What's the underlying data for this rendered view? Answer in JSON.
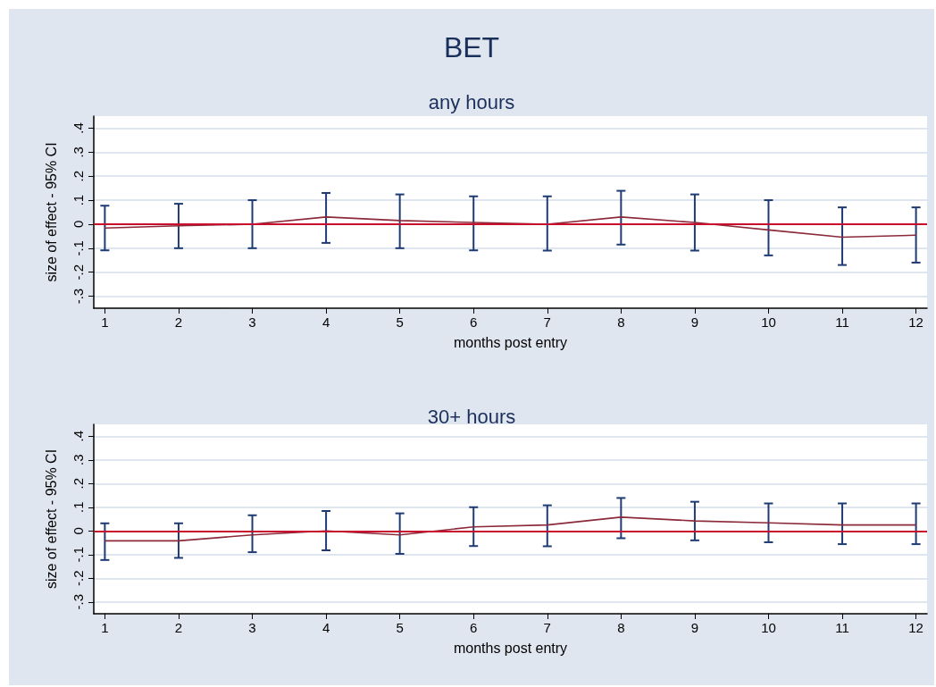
{
  "chart_data": [
    {
      "type": "line",
      "title": "BET",
      "subtitle": "any hours",
      "xlabel": "months post entry",
      "ylabel": "size of effect - 95% CI",
      "x": [
        1,
        2,
        3,
        4,
        5,
        6,
        7,
        8,
        9,
        10,
        11,
        12
      ],
      "series": [
        {
          "color": "#8c2a3a",
          "values": [
            -0.016,
            -0.007,
            0,
            0.03,
            0.015,
            0.007,
            0,
            0.03,
            0.007,
            -0.024,
            -0.054,
            -0.046
          ],
          "errors": [
            [
              -0.109,
              0.077
            ],
            [
              -0.1,
              0.085
            ],
            [
              -0.1,
              0.1
            ],
            [
              -0.078,
              0.13
            ],
            [
              -0.1,
              0.124
            ],
            [
              -0.109,
              0.116
            ],
            [
              -0.11,
              0.116
            ],
            [
              -0.085,
              0.139
            ],
            [
              -0.11,
              0.124
            ],
            [
              -0.13,
              0.1
            ],
            [
              -0.17,
              0.07
            ],
            [
              -0.16,
              0.07
            ]
          ]
        }
      ],
      "xlim": [
        0.85,
        12.15
      ],
      "xticks": [
        1,
        2,
        3,
        4,
        5,
        6,
        7,
        8,
        9,
        10,
        11,
        12
      ],
      "ylim": [
        -0.35,
        0.45
      ],
      "yticks": [
        {
          "value": -0.3,
          "label": "-.3"
        },
        {
          "value": -0.2,
          "label": "-.2"
        },
        {
          "value": -0.1,
          "label": "-.1"
        },
        0,
        {
          "value": 0.1,
          "label": ".1"
        },
        {
          "value": 0.2,
          "label": ".2"
        },
        {
          "value": 0.3,
          "label": ".3"
        },
        {
          "value": 0.4,
          "label": ".4"
        }
      ],
      "ref_lines": [
        {
          "axis": "y",
          "value": 0,
          "color": "#c8102e"
        }
      ],
      "grid": "y",
      "marker": "none",
      "line_style": "solid"
    },
    {
      "type": "line",
      "title": "30+ hours",
      "xlabel": "months post entry",
      "ylabel": "size of effect - 95% CI",
      "x": [
        1,
        2,
        3,
        4,
        5,
        6,
        7,
        8,
        9,
        10,
        11,
        12
      ],
      "series": [
        {
          "color": "#8c2a3a",
          "values": [
            -0.042,
            -0.042,
            -0.017,
            0,
            -0.017,
            0.017,
            0.025,
            0.058,
            0.042,
            0.034,
            0.025,
            0.025
          ],
          "errors": [
            [
              -0.123,
              0.032
            ],
            [
              -0.114,
              0.032
            ],
            [
              -0.09,
              0.066
            ],
            [
              -0.082,
              0.084
            ],
            [
              -0.097,
              0.074
            ],
            [
              -0.064,
              0.1
            ],
            [
              -0.065,
              0.108
            ],
            [
              -0.031,
              0.139
            ],
            [
              -0.04,
              0.123
            ],
            [
              -0.048,
              0.116
            ],
            [
              -0.056,
              0.116
            ],
            [
              -0.056,
              0.116
            ]
          ]
        }
      ],
      "xlim": [
        0.85,
        12.15
      ],
      "xticks": [
        1,
        2,
        3,
        4,
        5,
        6,
        7,
        8,
        9,
        10,
        11,
        12
      ],
      "ylim": [
        -0.35,
        0.45
      ],
      "yticks": [
        {
          "value": -0.3,
          "label": "-.3"
        },
        {
          "value": -0.2,
          "label": "-.2"
        },
        {
          "value": -0.1,
          "label": "-.1"
        },
        0,
        {
          "value": 0.1,
          "label": ".1"
        },
        {
          "value": 0.2,
          "label": ".2"
        },
        {
          "value": 0.3,
          "label": ".3"
        },
        {
          "value": 0.4,
          "label": ".4"
        }
      ],
      "ref_lines": [
        {
          "axis": "y",
          "value": 0,
          "color": "#c8102e"
        }
      ],
      "grid": "y",
      "marker": "none",
      "line_style": "solid"
    }
  ]
}
